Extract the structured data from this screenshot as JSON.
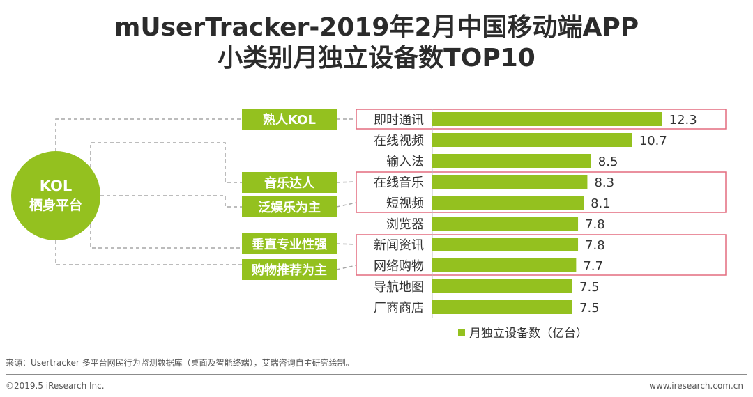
{
  "title_line1": "mUserTracker-2019年2月中国移动端APP",
  "title_line2": "小类别月独立设备数TOP10",
  "platform_label_line1": "KOL",
  "platform_label_line2": "栖身平台",
  "kol_tags": [
    "熟人KOL",
    "音乐达人",
    "泛娱乐为主",
    "垂直专业性强",
    "购物推荐为主"
  ],
  "source_note": "来源：Usertracker 多平台网民行为监测数据库（桌面及智能终端），艾瑞咨询自主研究绘制。",
  "copyright": "©2019.5 iResearch Inc.",
  "website": "www.iresearch.com.cn",
  "colors": {
    "bar": "#94c11f",
    "tag_bg": "#94c11f",
    "highlight_border": "#e36c7f",
    "dash": "#a6a6a6",
    "circle": "#94c11f"
  },
  "chart_data": {
    "type": "bar",
    "orientation": "horizontal",
    "categories": [
      "即时通讯",
      "在线视频",
      "输入法",
      "在线音乐",
      "短视频",
      "浏览器",
      "新闻资讯",
      "网络购物",
      "导航地图",
      "厂商商店"
    ],
    "values": [
      12.3,
      10.7,
      8.5,
      8.3,
      8.1,
      7.8,
      7.8,
      7.7,
      7.5,
      7.5
    ],
    "value_labels": [
      "12.3",
      "10.7",
      "8.5",
      "8.3",
      "8.1",
      "7.8",
      "7.8",
      "7.7",
      "7.5",
      "7.5"
    ],
    "legend": "月独立设备数（亿台）",
    "legend_position": "bottom-right",
    "grid": false,
    "highlight_groups": [
      [
        0
      ],
      [
        3,
        4
      ],
      [
        6,
        7
      ]
    ]
  }
}
